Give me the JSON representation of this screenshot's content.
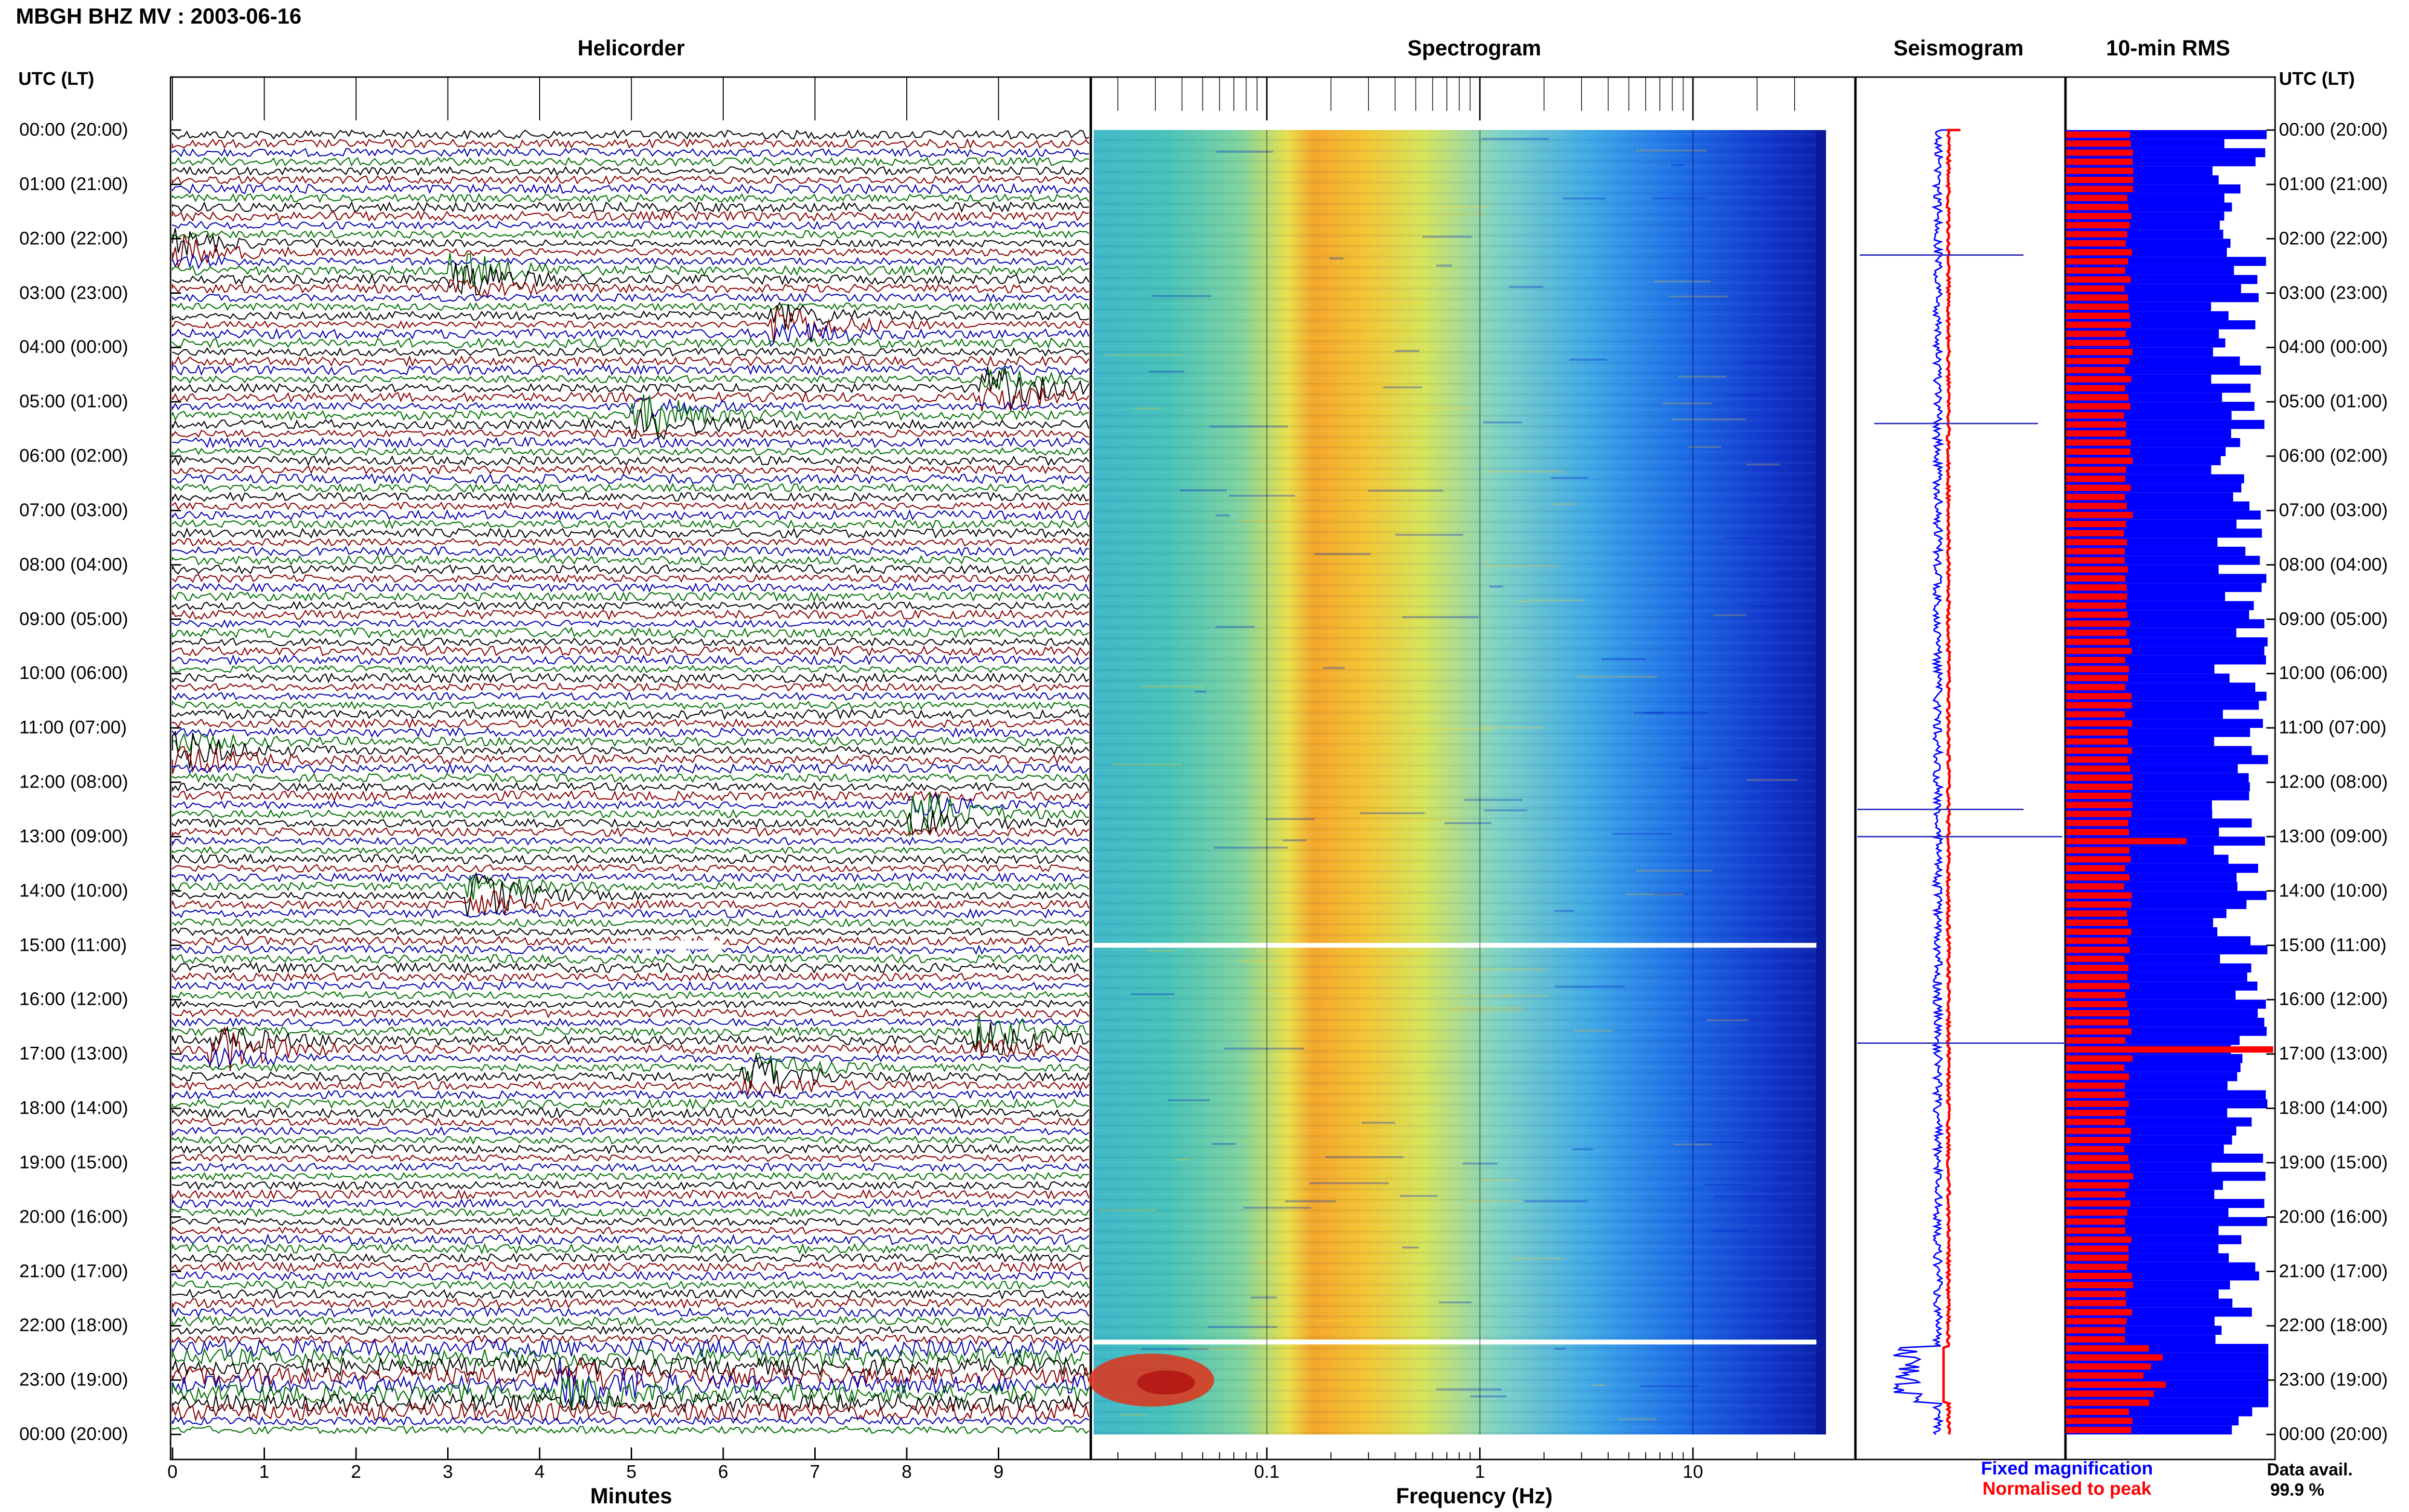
{
  "header": {
    "title": "MBGH BHZ MV : 2003-06-16",
    "utc_label_left": "UTC (LT)",
    "utc_label_right": "UTC (LT)"
  },
  "panels": {
    "helicorder": "Helicorder",
    "spectrogram": "Spectrogram",
    "seismogram": "Seismogram",
    "rms": "10-min RMS"
  },
  "time_labels": [
    "00:00 (20:00)",
    "01:00 (21:00)",
    "02:00 (22:00)",
    "03:00 (23:00)",
    "04:00 (00:00)",
    "05:00 (01:00)",
    "06:00 (02:00)",
    "07:00 (03:00)",
    "08:00 (04:00)",
    "09:00 (05:00)",
    "10:00 (06:00)",
    "11:00 (07:00)",
    "12:00 (08:00)",
    "13:00 (09:00)",
    "14:00 (10:00)",
    "15:00 (11:00)",
    "16:00 (12:00)",
    "17:00 (13:00)",
    "18:00 (14:00)",
    "19:00 (15:00)",
    "20:00 (16:00)",
    "21:00 (17:00)",
    "22:00 (18:00)",
    "23:00 (19:00)",
    "00:00 (20:00)"
  ],
  "axes": {
    "minutes_label": "Minutes",
    "minutes_ticks": [
      "0",
      "1",
      "2",
      "3",
      "4",
      "5",
      "6",
      "7",
      "8",
      "9"
    ],
    "frequency_label": "Frequency (Hz)",
    "frequency_ticks": [
      "0.1",
      "1",
      "10"
    ]
  },
  "legend": {
    "fixed": "Fixed magnification",
    "normalised": "Normalised to peak",
    "fixed_color": "#0000ff",
    "normalised_color": "#ff0000"
  },
  "data_availability": {
    "label": "Data avail.",
    "value": "99.9 %"
  },
  "colors": {
    "trace_colors": [
      "#000000",
      "#8b0000",
      "#0000b0",
      "#007000"
    ],
    "rms_fixed": "#0000ff",
    "rms_normalised": "#ff0000"
  },
  "chart_data": {
    "type": "heatmap",
    "time_range_utc": [
      "00:00",
      "24:00"
    ],
    "helicorder_minutes_range": [
      0,
      10
    ],
    "spectrogram_freq_range_hz": [
      0.02,
      40
    ],
    "spectrogram_xscale": "log",
    "events_helicorder": [
      {
        "hour": 2.1,
        "minute": 0.1,
        "color": "blue"
      },
      {
        "hour": 2.6,
        "minute": 3.3,
        "color": "black"
      },
      {
        "hour": 3.5,
        "minute": 6.8,
        "color": "darkred"
      },
      {
        "hour": 4.7,
        "minute": 9.1,
        "color": "darkred"
      },
      {
        "hour": 5.2,
        "minute": 5.3,
        "color": "black"
      },
      {
        "hour": 11.4,
        "minute": 0.2,
        "color": "darkred"
      },
      {
        "hour": 12.5,
        "minute": 8.3,
        "color": "black"
      },
      {
        "hour": 14.0,
        "minute": 3.5,
        "color": "black"
      },
      {
        "hour": 16.6,
        "minute": 9.0,
        "color": "black"
      },
      {
        "hour": 16.8,
        "minute": 0.7,
        "color": "darkred"
      },
      {
        "hour": 17.3,
        "minute": 6.5,
        "color": "black"
      },
      {
        "hour": 23.0,
        "minute": 4.5,
        "color": "darkred"
      }
    ],
    "rms_fixed_rows": 144,
    "data_availability_percent": 99.9
  }
}
